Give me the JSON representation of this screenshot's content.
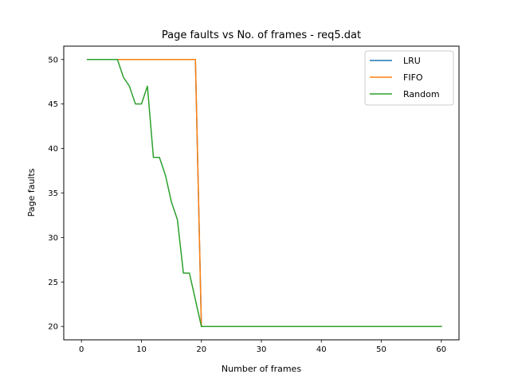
{
  "chart_data": {
    "type": "line",
    "title": "Page faults vs No. of frames - req5.dat",
    "xlabel": "Number of frames",
    "ylabel": "Page faults",
    "xlim": [
      -2.95,
      62.95
    ],
    "ylim": [
      18.5,
      51.5
    ],
    "xticks": [
      0,
      10,
      20,
      30,
      40,
      50,
      60
    ],
    "yticks": [
      20,
      25,
      30,
      35,
      40,
      45,
      50
    ],
    "grid": false,
    "legend_position": "top-right",
    "series": [
      {
        "name": "LRU",
        "color": "#1f77b4",
        "x": [
          1,
          2,
          3,
          4,
          5,
          6,
          7,
          8,
          9,
          10,
          11,
          12,
          13,
          14,
          15,
          16,
          17,
          18,
          19,
          20,
          21,
          22,
          23,
          24,
          25,
          26,
          27,
          28,
          29,
          30,
          31,
          32,
          33,
          34,
          35,
          36,
          37,
          38,
          39,
          40,
          41,
          42,
          43,
          44,
          45,
          46,
          47,
          48,
          49,
          50,
          51,
          52,
          53,
          54,
          55,
          56,
          57,
          58,
          59,
          60
        ],
        "y": [
          50,
          50,
          50,
          50,
          50,
          50,
          50,
          50,
          50,
          50,
          50,
          50,
          50,
          50,
          50,
          50,
          50,
          50,
          50,
          20,
          20,
          20,
          20,
          20,
          20,
          20,
          20,
          20,
          20,
          20,
          20,
          20,
          20,
          20,
          20,
          20,
          20,
          20,
          20,
          20,
          20,
          20,
          20,
          20,
          20,
          20,
          20,
          20,
          20,
          20,
          20,
          20,
          20,
          20,
          20,
          20,
          20,
          20,
          20,
          20
        ]
      },
      {
        "name": "FIFO",
        "color": "#ff7f0e",
        "x": [
          1,
          2,
          3,
          4,
          5,
          6,
          7,
          8,
          9,
          10,
          11,
          12,
          13,
          14,
          15,
          16,
          17,
          18,
          19,
          20,
          21,
          22,
          23,
          24,
          25,
          26,
          27,
          28,
          29,
          30,
          31,
          32,
          33,
          34,
          35,
          36,
          37,
          38,
          39,
          40,
          41,
          42,
          43,
          44,
          45,
          46,
          47,
          48,
          49,
          50,
          51,
          52,
          53,
          54,
          55,
          56,
          57,
          58,
          59,
          60
        ],
        "y": [
          50,
          50,
          50,
          50,
          50,
          50,
          50,
          50,
          50,
          50,
          50,
          50,
          50,
          50,
          50,
          50,
          50,
          50,
          50,
          20,
          20,
          20,
          20,
          20,
          20,
          20,
          20,
          20,
          20,
          20,
          20,
          20,
          20,
          20,
          20,
          20,
          20,
          20,
          20,
          20,
          20,
          20,
          20,
          20,
          20,
          20,
          20,
          20,
          20,
          20,
          20,
          20,
          20,
          20,
          20,
          20,
          20,
          20,
          20,
          20
        ]
      },
      {
        "name": "Random",
        "color": "#2ca02c",
        "x": [
          1,
          2,
          3,
          4,
          5,
          6,
          7,
          8,
          9,
          10,
          11,
          12,
          13,
          14,
          15,
          16,
          17,
          18,
          19,
          20,
          21,
          22,
          23,
          24,
          25,
          26,
          27,
          28,
          29,
          30,
          31,
          32,
          33,
          34,
          35,
          36,
          37,
          38,
          39,
          40,
          41,
          42,
          43,
          44,
          45,
          46,
          47,
          48,
          49,
          50,
          51,
          52,
          53,
          54,
          55,
          56,
          57,
          58,
          59,
          60
        ],
        "y": [
          50,
          50,
          50,
          50,
          50,
          50,
          48,
          47,
          45,
          45,
          47,
          39,
          39,
          37,
          34,
          32,
          26,
          26,
          23,
          20,
          20,
          20,
          20,
          20,
          20,
          20,
          20,
          20,
          20,
          20,
          20,
          20,
          20,
          20,
          20,
          20,
          20,
          20,
          20,
          20,
          20,
          20,
          20,
          20,
          20,
          20,
          20,
          20,
          20,
          20,
          20,
          20,
          20,
          20,
          20,
          20,
          20,
          20,
          20,
          20
        ]
      }
    ]
  }
}
